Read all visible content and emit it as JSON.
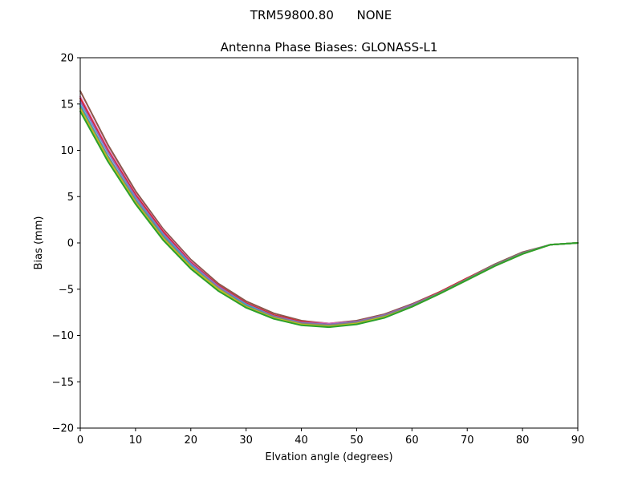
{
  "chart_data": {
    "type": "line",
    "suptitle": "TRM59800.80      NONE",
    "title": "Antenna Phase Biases: GLONASS-L1",
    "xlabel": "Elvation angle (degrees)",
    "ylabel": "Bias (mm)",
    "xlim": [
      0,
      90
    ],
    "ylim": [
      -20,
      20
    ],
    "xticks": [
      0,
      10,
      20,
      30,
      40,
      50,
      60,
      70,
      80,
      90
    ],
    "yticks": [
      -20,
      -15,
      -10,
      -5,
      0,
      5,
      10,
      15,
      20
    ],
    "grid": false,
    "legend": "none",
    "x": [
      0,
      5,
      10,
      15,
      20,
      25,
      30,
      35,
      40,
      45,
      50,
      55,
      60,
      65,
      70,
      75,
      80,
      85,
      90
    ],
    "series": [
      {
        "color": "#8c564b",
        "values": [
          16.4,
          10.6,
          5.6,
          1.5,
          -1.8,
          -4.4,
          -6.3,
          -7.6,
          -8.4,
          -8.7,
          -8.4,
          -7.7,
          -6.6,
          -5.3,
          -3.8,
          -2.3,
          -1.0,
          -0.2,
          0.0
        ]
      },
      {
        "color": "#e377c2",
        "values": [
          15.8,
          10.2,
          5.3,
          1.3,
          -2.0,
          -4.6,
          -6.5,
          -7.8,
          -8.5,
          -8.7,
          -8.5,
          -7.8,
          -6.7,
          -5.3,
          -3.8,
          -2.4,
          -1.1,
          -0.2,
          0.0
        ]
      },
      {
        "color": "#d62728",
        "values": [
          15.6,
          10.0,
          5.2,
          1.2,
          -2.1,
          -4.6,
          -6.5,
          -7.8,
          -8.5,
          -8.8,
          -8.5,
          -7.8,
          -6.7,
          -5.3,
          -3.8,
          -2.4,
          -1.1,
          -0.2,
          0.0
        ]
      },
      {
        "color": "#9467bd",
        "values": [
          15.3,
          9.8,
          5.0,
          1.0,
          -2.2,
          -4.7,
          -6.6,
          -7.9,
          -8.6,
          -8.8,
          -8.5,
          -7.8,
          -6.7,
          -5.4,
          -3.9,
          -2.4,
          -1.1,
          -0.2,
          0.0
        ]
      },
      {
        "color": "#17becf",
        "values": [
          14.9,
          9.4,
          4.7,
          0.8,
          -2.4,
          -4.9,
          -6.7,
          -8.0,
          -8.7,
          -8.9,
          -8.6,
          -7.9,
          -6.8,
          -5.4,
          -3.9,
          -2.4,
          -1.1,
          -0.2,
          0.0
        ]
      },
      {
        "color": "#7f7f7f",
        "values": [
          14.7,
          9.3,
          4.6,
          0.7,
          -2.5,
          -4.9,
          -6.8,
          -8.0,
          -8.7,
          -8.9,
          -8.6,
          -7.9,
          -6.8,
          -5.4,
          -3.9,
          -2.4,
          -1.1,
          -0.2,
          0.0
        ]
      },
      {
        "color": "#bcbd22",
        "values": [
          14.5,
          9.1,
          4.4,
          0.5,
          -2.6,
          -5.0,
          -6.9,
          -8.1,
          -8.8,
          -9.0,
          -8.7,
          -8.0,
          -6.9,
          -5.5,
          -4.0,
          -2.5,
          -1.2,
          -0.2,
          0.0
        ]
      },
      {
        "color": "#2ca02c",
        "values": [
          14.2,
          8.8,
          4.2,
          0.3,
          -2.8,
          -5.2,
          -7.0,
          -8.2,
          -8.9,
          -9.1,
          -8.8,
          -8.1,
          -6.9,
          -5.5,
          -4.0,
          -2.5,
          -1.2,
          -0.2,
          0.0
        ]
      }
    ]
  }
}
